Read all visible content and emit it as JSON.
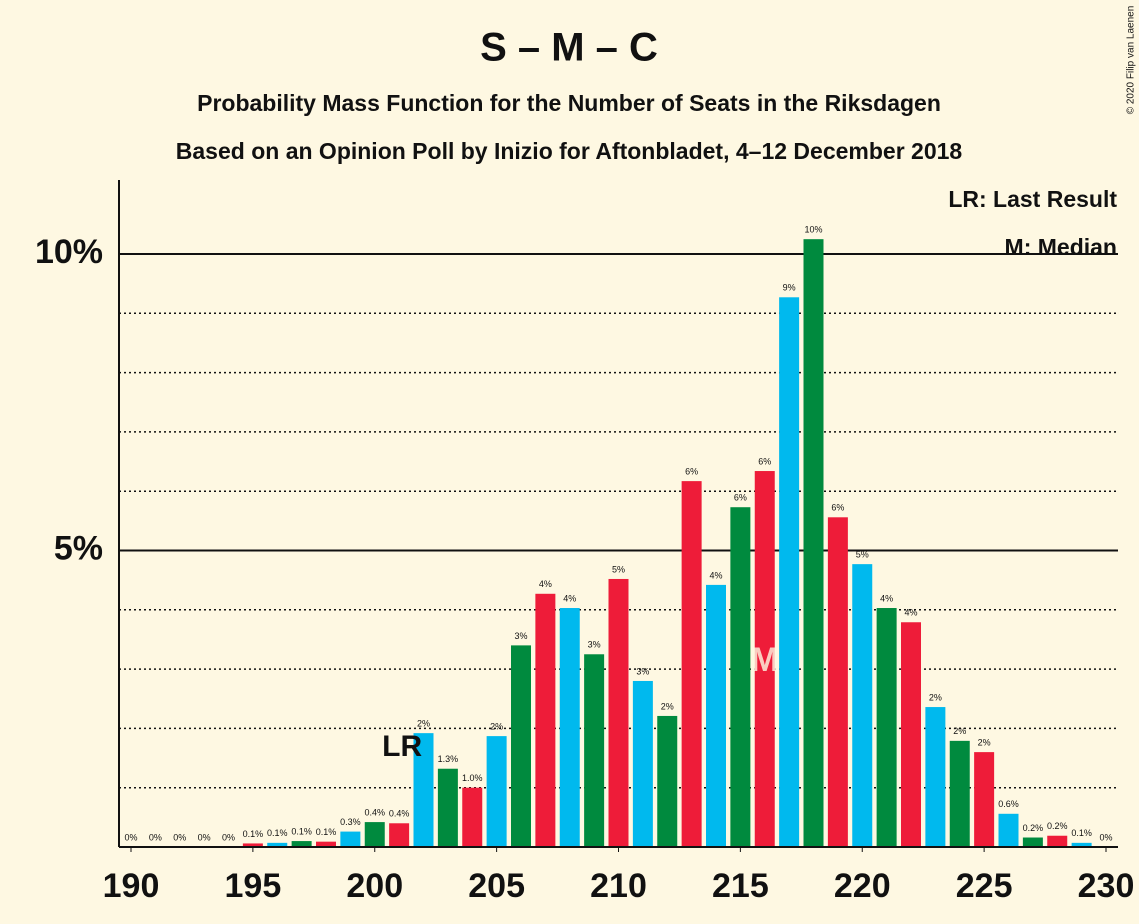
{
  "chart_data": {
    "type": "bar",
    "title": "S – M – C",
    "subtitle": "Probability Mass Function for the Number of Seats in the Riksdagen",
    "subtitle2": "Based on an Opinion Poll by Inizio for Aftonbladet, 4–12 December 2018",
    "copyright": "© 2020 Filip van Laenen",
    "legend": [
      "LR: Last Result",
      "M: Median"
    ],
    "legend_position": "upper right",
    "annotations": [
      {
        "text": "LR",
        "x": 201
      },
      {
        "text": "M",
        "x": 216
      }
    ],
    "x": [
      190,
      191,
      192,
      193,
      194,
      195,
      196,
      197,
      198,
      199,
      200,
      201,
      202,
      203,
      204,
      205,
      206,
      207,
      208,
      209,
      210,
      211,
      212,
      213,
      214,
      215,
      216,
      217,
      218,
      219,
      220,
      221,
      222,
      223,
      224,
      225,
      226,
      227,
      228,
      229,
      230
    ],
    "values": [
      0,
      0,
      0,
      0,
      0,
      0.06,
      0.07,
      0.1,
      0.09,
      0.26,
      0.42,
      0.4,
      1.92,
      1.32,
      1.0,
      1.87,
      3.4,
      4.27,
      4.03,
      3.25,
      4.52,
      2.8,
      2.21,
      6.17,
      4.42,
      5.73,
      6.34,
      9.27,
      10.25,
      5.56,
      4.77,
      4.03,
      3.79,
      2.36,
      1.79,
      1.6,
      0.56,
      0.16,
      0.19,
      0.07,
      0
    ],
    "value_labels": [
      "0%",
      "0%",
      "0%",
      "0%",
      "0%",
      "0.1%",
      "0.1%",
      "0.1%",
      "0.1%",
      "0.3%",
      "0.4%",
      "0.4%",
      "2%",
      "1.3%",
      "1.0%",
      "2%",
      "3%",
      "4%",
      "4%",
      "3%",
      "5%",
      "3%",
      "2%",
      "6%",
      "4%",
      "6%",
      "6%",
      "9%",
      "10%",
      "6%",
      "5%",
      "4%",
      "4%",
      "2%",
      "2%",
      "2%",
      "0.6%",
      "0.2%",
      "0.2%",
      "0.1%",
      "0%"
    ],
    "colors": [
      "#00b9ee",
      "#008a3e",
      "#ee1c39",
      "#00b9ee",
      "#008a3e",
      "#ee1c39",
      "#00b9ee",
      "#008a3e",
      "#ee1c39",
      "#00b9ee",
      "#008a3e",
      "#ee1c39",
      "#00b9ee",
      "#008a3e",
      "#ee1c39",
      "#00b9ee",
      "#008a3e",
      "#ee1c39",
      "#00b9ee",
      "#008a3e",
      "#ee1c39",
      "#00b9ee",
      "#008a3e",
      "#ee1c39",
      "#00b9ee",
      "#008a3e",
      "#ee1c39",
      "#00b9ee",
      "#008a3e",
      "#ee1c39",
      "#00b9ee",
      "#008a3e",
      "#ee1c39",
      "#00b9ee",
      "#008a3e",
      "#ee1c39",
      "#00b9ee",
      "#008a3e",
      "#ee1c39",
      "#00b9ee",
      "#008a3e"
    ],
    "xlim": [
      190,
      230
    ],
    "xticks": [
      190,
      195,
      200,
      205,
      210,
      215,
      220,
      225,
      230
    ],
    "ylim": [
      0,
      10
    ],
    "yticks": [
      {
        "value": 5,
        "label": "5%"
      },
      {
        "value": 10,
        "label": "10%"
      }
    ],
    "minor_yticks": [
      1,
      2,
      3,
      4,
      6,
      7,
      8,
      9
    ]
  }
}
